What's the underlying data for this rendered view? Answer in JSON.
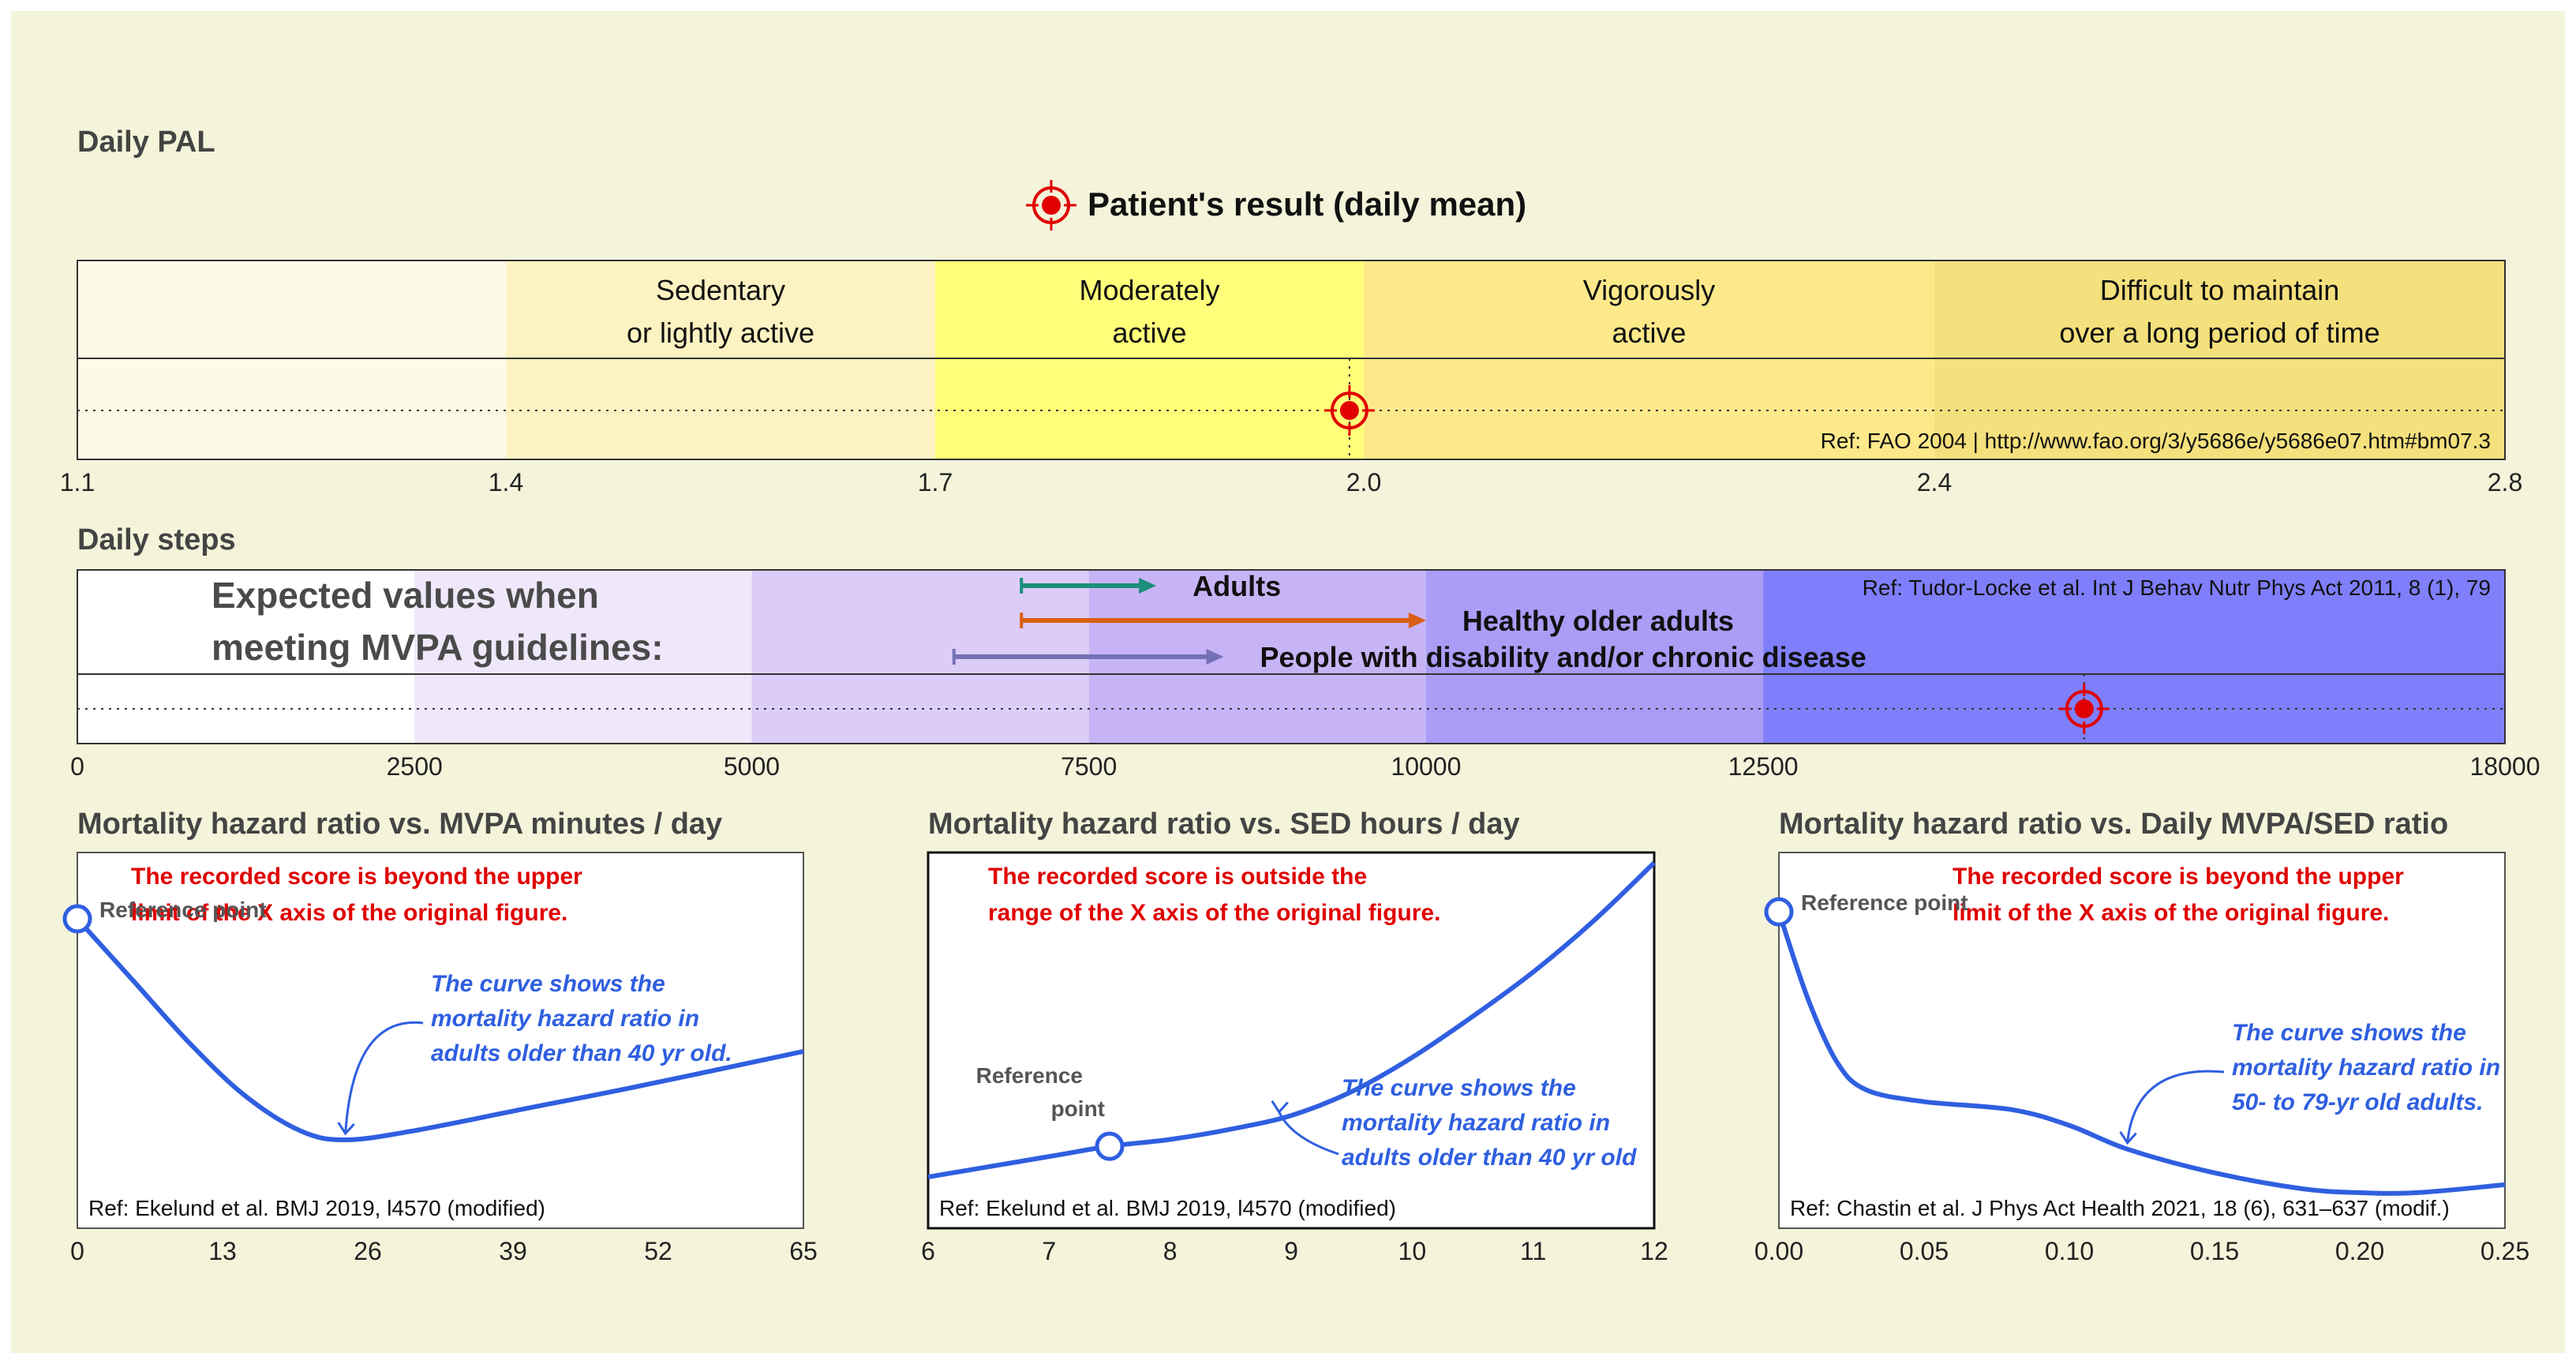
{
  "colors": {
    "page_bg": "#f4f4db",
    "frame": "#333333",
    "patient_marker": "#e00000",
    "curve": "#2f5fe0",
    "warning_text": "#e00000",
    "annotation_text": "#2f5fe0",
    "section_title": "#444444"
  },
  "pal": {
    "title": "Daily PAL",
    "legend_label": "Patient's result (daily mean)",
    "legend_icon": "crosshair-target-icon",
    "reference": "Ref: FAO 2004 | http://www.fao.org/3/y5686e/y5686e07.htm#bm07.3",
    "ticks": [
      "1.1",
      "1.4",
      "1.7",
      "2.0",
      "2.4",
      "2.8"
    ],
    "zones": [
      {
        "from": 1.1,
        "to": 1.4,
        "line1": "",
        "line2": "",
        "color": "#fbfbe6"
      },
      {
        "from": 1.4,
        "to": 1.7,
        "line1": "Sedentary",
        "line2": "or lightly active",
        "color": "#fdf2c2"
      },
      {
        "from": 1.7,
        "to": 2.0,
        "line1": "Moderately",
        "line2": "active",
        "color": "#ffff7a"
      },
      {
        "from": 2.0,
        "to": 2.4,
        "line1": "Vigorously",
        "line2": "active",
        "color": "#fde98a"
      },
      {
        "from": 2.4,
        "to": 2.8,
        "line1": "Difficult to maintain",
        "line2": "over a long period of time",
        "color": "#f4e07c"
      }
    ],
    "patient_value": 1.99,
    "axis": [
      1.1,
      2.8
    ]
  },
  "steps": {
    "title": "Daily steps",
    "expected_line1": "Expected values when",
    "expected_line2": "meeting MVPA guidelines:",
    "reference": "Ref: Tudor-Locke et al. Int J Behav Nutr Phys Act 2011, 8 (1), 79",
    "ticks": [
      "0",
      "2500",
      "5000",
      "7500",
      "10000",
      "12500",
      "18000"
    ],
    "axis": [
      0,
      18000
    ],
    "zones": [
      {
        "from": 0,
        "to": 2500,
        "color": "#ffffff"
      },
      {
        "from": 2500,
        "to": 5000,
        "color": "#efe8fb"
      },
      {
        "from": 5000,
        "to": 7500,
        "color": "#dccdf8"
      },
      {
        "from": 7500,
        "to": 10000,
        "color": "#c7b4f6"
      },
      {
        "from": 10000,
        "to": 12500,
        "color": "#ab9cf6"
      },
      {
        "from": 12500,
        "to": 18000,
        "color": "#7f7ffc"
      }
    ],
    "arrows": [
      {
        "label": "Adults",
        "from": 7000,
        "to": 8000,
        "color": "#1a8f7a"
      },
      {
        "label": "Healthy older adults",
        "from": 7000,
        "to": 10000,
        "color": "#d95f12"
      },
      {
        "label": "People with disability and/or chronic disease",
        "from": 6500,
        "to": 8500,
        "color": "#7470b6"
      }
    ],
    "patient_value": 14880
  },
  "chart_data": [
    {
      "type": "line",
      "title": "Mortality hazard ratio vs. MVPA minutes / day",
      "x_ticks": [
        "0",
        "13",
        "26",
        "39",
        "52",
        "65"
      ],
      "xlim": [
        0,
        65
      ],
      "ylim": [
        0.3,
        1.15
      ],
      "x": [
        0,
        5,
        10,
        15,
        20,
        24,
        30,
        40,
        50,
        65
      ],
      "y": [
        1.0,
        0.86,
        0.72,
        0.6,
        0.52,
        0.5,
        0.52,
        0.57,
        0.62,
        0.7
      ],
      "warning_line1": "The recorded score is beyond the upper",
      "warning_line2": "limit of the X axis of the original figure.",
      "reference_point_line1": "Reference point",
      "reference_point_line2": "",
      "annotation": [
        "The curve shows the",
        "mortality hazard ratio in",
        "adults older than 40 yr old."
      ],
      "reference": "Ref: Ekelund et al. BMJ 2019, l4570 (modified)"
    },
    {
      "type": "line",
      "title": "Mortality hazard ratio vs. SED hours / day",
      "x_ticks": [
        "6",
        "7",
        "8",
        "9",
        "10",
        "11",
        "12"
      ],
      "xlim": [
        6,
        12
      ],
      "ylim": [
        0.85,
        1.95
      ],
      "x": [
        6,
        7,
        7.5,
        8,
        8.5,
        9,
        9.5,
        10,
        10.5,
        11,
        11.5,
        12
      ],
      "y": [
        1.0,
        1.06,
        1.09,
        1.11,
        1.14,
        1.18,
        1.25,
        1.35,
        1.47,
        1.6,
        1.75,
        1.92
      ],
      "warning_line1": "The recorded score is outside the",
      "warning_line2": "range of the X axis of the original figure.",
      "reference_point_line1": "Reference",
      "reference_point_line2": "point",
      "annotation": [
        "The curve shows the",
        "mortality hazard ratio in",
        "adults older than 40 yr old"
      ],
      "reference": "Ref: Ekelund et al. BMJ 2019, l4570 (modified)"
    },
    {
      "type": "line",
      "title": "Mortality hazard ratio vs. Daily MVPA/SED ratio",
      "x_ticks": [
        "0.00",
        "0.05",
        "0.10",
        "0.15",
        "0.20",
        "0.25"
      ],
      "xlim": [
        0,
        0.25
      ],
      "ylim": [
        0.2,
        1.15
      ],
      "x": [
        0,
        0.01,
        0.02,
        0.03,
        0.05,
        0.08,
        0.1,
        0.12,
        0.15,
        0.18,
        0.2,
        0.22,
        0.25
      ],
      "y": [
        1.0,
        0.78,
        0.62,
        0.55,
        0.52,
        0.5,
        0.46,
        0.4,
        0.34,
        0.3,
        0.29,
        0.29,
        0.31
      ],
      "warning_line1": "The recorded score is beyond the upper",
      "warning_line2": "limit of the X axis of the original figure.",
      "reference_point_line1": "Reference point",
      "reference_point_line2": "",
      "annotation": [
        "The curve shows the",
        "mortality hazard ratio in",
        "50- to 79-yr old adults."
      ],
      "reference": "Ref: Chastin et al. J Phys Act Health 2021, 18 (6), 631–637 (modif.)"
    }
  ]
}
